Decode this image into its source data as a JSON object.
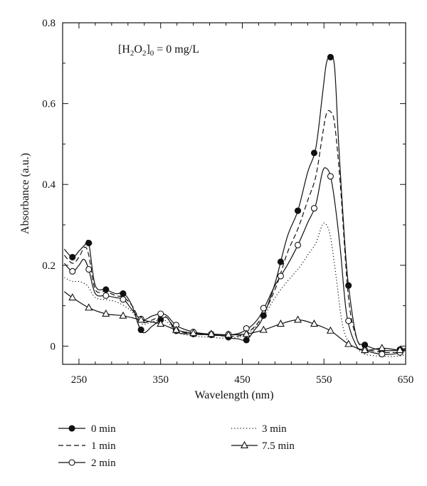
{
  "chart_data": {
    "type": "line",
    "title": "",
    "annotation": {
      "prefix": "[H",
      "sub1": "2",
      "mid": "O",
      "sub2": "2",
      "close": "]",
      "sub3": "0",
      "suffix": " = 0 mg/L"
    },
    "xlabel": "Wavelength (nm)",
    "ylabel": "Absorbance (a.u.)",
    "xlim": [
      230,
      650
    ],
    "ylim": [
      -0.045,
      0.8
    ],
    "xticks": [
      250,
      350,
      450,
      550,
      650
    ],
    "yticks": [
      0,
      0.2,
      0.4,
      0.6,
      0.8
    ],
    "ytick_labels": [
      "0",
      "0.2",
      "0.4",
      "0.6",
      "0.8"
    ],
    "grid": false,
    "legend": {
      "position": "bottom"
    },
    "series": [
      {
        "name": "0 min",
        "style": "solid",
        "marker": "filled-circle",
        "x": [
          232,
          242,
          250,
          257,
          262,
          270,
          283,
          295,
          305,
          315,
          327,
          340,
          350,
          358,
          370,
          390,
          410,
          430,
          435,
          445,
          455,
          465,
          475,
          490,
          505,
          518,
          530,
          540,
          548,
          553,
          558,
          563,
          568,
          575,
          580,
          590,
          600,
          620,
          640,
          650
        ],
        "y": [
          0.24,
          0.22,
          0.235,
          0.25,
          0.255,
          0.15,
          0.14,
          0.13,
          0.13,
          0.1,
          0.035,
          0.05,
          0.065,
          0.07,
          0.035,
          0.03,
          0.028,
          0.025,
          0.02,
          0.018,
          0.015,
          0.04,
          0.07,
          0.155,
          0.27,
          0.335,
          0.43,
          0.49,
          0.62,
          0.7,
          0.715,
          0.69,
          0.5,
          0.27,
          0.15,
          0.02,
          0.003,
          -0.01,
          -0.01,
          -0.005
        ],
        "marker_x": [
          242,
          262,
          283,
          304,
          326,
          350,
          369,
          390,
          412,
          433,
          455,
          476,
          497,
          518,
          538,
          558,
          580,
          600,
          621,
          643
        ]
      },
      {
        "name": "1 min",
        "style": "dashed",
        "marker": "none",
        "x": [
          232,
          242,
          250,
          257,
          262,
          270,
          283,
          295,
          305,
          315,
          327,
          340,
          350,
          358,
          370,
          390,
          410,
          430,
          450,
          470,
          490,
          505,
          518,
          530,
          540,
          548,
          553,
          558,
          563,
          570,
          580,
          590,
          600,
          620,
          640,
          650
        ],
        "y": [
          0.225,
          0.205,
          0.22,
          0.245,
          0.225,
          0.14,
          0.135,
          0.125,
          0.12,
          0.1,
          0.06,
          0.065,
          0.075,
          0.07,
          0.04,
          0.03,
          0.028,
          0.025,
          0.028,
          0.06,
          0.14,
          0.23,
          0.29,
          0.36,
          0.42,
          0.52,
          0.575,
          0.58,
          0.55,
          0.4,
          0.12,
          0.02,
          -0.005,
          -0.015,
          -0.015,
          -0.01
        ]
      },
      {
        "name": "2 min",
        "style": "solid",
        "marker": "open-circle",
        "x": [
          232,
          242,
          250,
          256,
          262,
          270,
          283,
          295,
          305,
          315,
          327,
          340,
          350,
          358,
          370,
          390,
          410,
          430,
          450,
          470,
          490,
          505,
          518,
          530,
          540,
          548,
          553,
          558,
          563,
          570,
          578,
          590,
          600,
          620,
          640,
          650
        ],
        "y": [
          0.205,
          0.185,
          0.2,
          0.215,
          0.19,
          0.13,
          0.125,
          0.12,
          0.115,
          0.09,
          0.065,
          0.075,
          0.08,
          0.075,
          0.05,
          0.035,
          0.03,
          0.028,
          0.035,
          0.07,
          0.15,
          0.2,
          0.25,
          0.305,
          0.35,
          0.43,
          0.44,
          0.42,
          0.36,
          0.24,
          0.075,
          0.0,
          -0.01,
          -0.02,
          -0.018,
          -0.01
        ],
        "marker_x": [
          242,
          262,
          283,
          304,
          326,
          350,
          369,
          390,
          412,
          433,
          455,
          476,
          497,
          518,
          538,
          558,
          580,
          600,
          621,
          643
        ]
      },
      {
        "name": "3 min",
        "style": "dotted",
        "marker": "none",
        "x": [
          232,
          242,
          250,
          260,
          270,
          283,
          295,
          305,
          315,
          327,
          340,
          350,
          358,
          370,
          390,
          410,
          430,
          450,
          470,
          490,
          505,
          518,
          530,
          540,
          548,
          553,
          558,
          565,
          572,
          580,
          590,
          600,
          620,
          640,
          650
        ],
        "y": [
          0.17,
          0.16,
          0.16,
          0.15,
          0.12,
          0.115,
          0.11,
          0.1,
          0.085,
          0.055,
          0.06,
          0.065,
          0.06,
          0.035,
          0.025,
          0.022,
          0.02,
          0.025,
          0.055,
          0.12,
          0.16,
          0.19,
          0.225,
          0.255,
          0.3,
          0.3,
          0.27,
          0.17,
          0.06,
          0.01,
          -0.005,
          -0.02,
          -0.025,
          -0.025,
          -0.02
        ]
      },
      {
        "name": "7.5 min",
        "style": "solid",
        "marker": "open-triangle",
        "x": [
          232,
          242,
          262,
          283,
          304,
          326,
          350,
          369,
          390,
          412,
          433,
          455,
          476,
          497,
          518,
          538,
          558,
          580,
          600,
          621,
          643,
          650
        ],
        "y": [
          0.135,
          0.12,
          0.095,
          0.08,
          0.075,
          0.065,
          0.055,
          0.04,
          0.032,
          0.03,
          0.028,
          0.03,
          0.04,
          0.055,
          0.065,
          0.055,
          0.038,
          0.005,
          -0.01,
          -0.005,
          -0.01,
          -0.008
        ],
        "marker_x": [
          242,
          262,
          283,
          304,
          326,
          350,
          369,
          390,
          412,
          433,
          455,
          476,
          497,
          518,
          538,
          558,
          580,
          600,
          621,
          643
        ]
      }
    ]
  }
}
